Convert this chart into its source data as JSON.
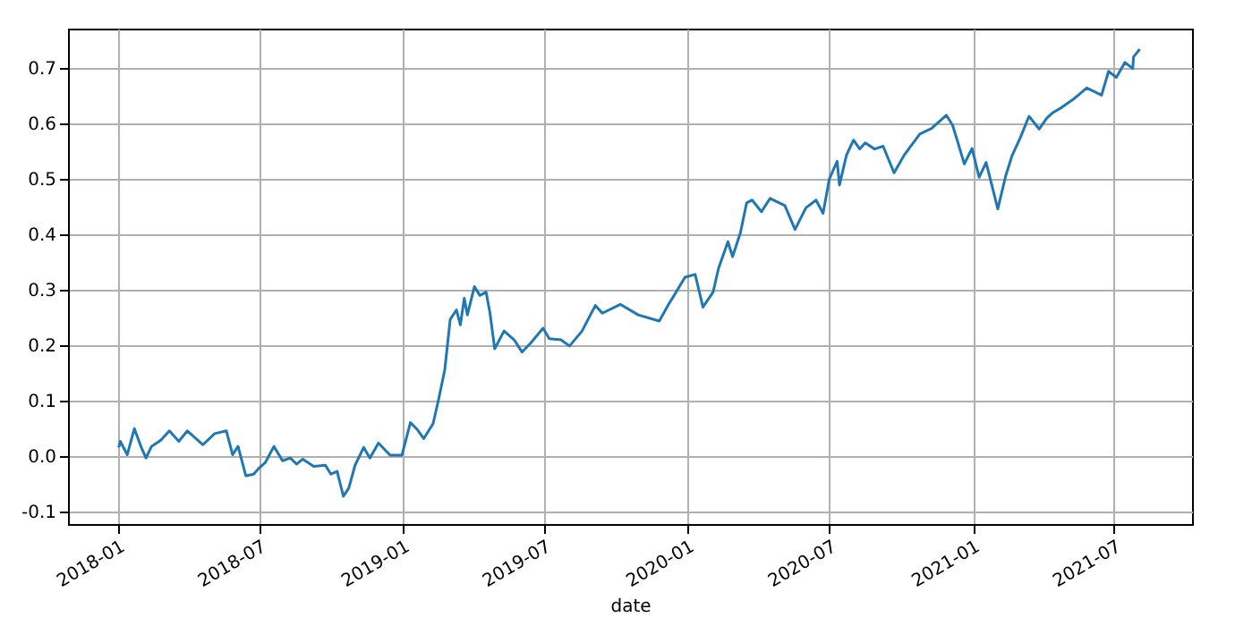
{
  "chart_data": {
    "type": "line",
    "xlabel": "date",
    "x": [
      "2018-01-02",
      "2018-01-04",
      "2018-01-13",
      "2018-01-22",
      "2018-01-31",
      "2018-02-06",
      "2018-02-13",
      "2018-02-25",
      "2018-03-08",
      "2018-03-20",
      "2018-03-31",
      "2018-04-20",
      "2018-05-05",
      "2018-05-20",
      "2018-05-28",
      "2018-06-04",
      "2018-06-14",
      "2018-06-24",
      "2018-07-01",
      "2018-07-09",
      "2018-07-20",
      "2018-07-31",
      "2018-08-10",
      "2018-08-18",
      "2018-08-26",
      "2018-09-09",
      "2018-09-24",
      "2018-10-01",
      "2018-10-09",
      "2018-10-17",
      "2018-10-24",
      "2018-11-01",
      "2018-11-12",
      "2018-11-20",
      "2018-12-01",
      "2018-12-16",
      "2018-12-31",
      "2019-01-11",
      "2019-01-20",
      "2019-01-28",
      "2019-02-09",
      "2019-02-16",
      "2019-02-24",
      "2019-03-03",
      "2019-03-11",
      "2019-03-16",
      "2019-03-21",
      "2019-03-25",
      "2019-04-03",
      "2019-04-10",
      "2019-04-18",
      "2019-04-23",
      "2019-04-29",
      "2019-05-11",
      "2019-05-24",
      "2019-06-03",
      "2019-06-14",
      "2019-06-30",
      "2019-07-08",
      "2019-07-23",
      "2019-08-03",
      "2019-08-19",
      "2019-09-05",
      "2019-09-14",
      "2019-10-07",
      "2019-10-30",
      "2019-11-26",
      "2019-12-08",
      "2019-12-15",
      "2019-12-29",
      "2020-01-11",
      "2020-01-21",
      "2020-02-03",
      "2020-02-10",
      "2020-02-22",
      "2020-02-28",
      "2020-03-09",
      "2020-03-17",
      "2020-03-24",
      "2020-04-05",
      "2020-04-16",
      "2020-05-05",
      "2020-05-18",
      "2020-06-01",
      "2020-06-14",
      "2020-06-23",
      "2020-07-01",
      "2020-07-11",
      "2020-07-14",
      "2020-07-23",
      "2020-08-01",
      "2020-08-09",
      "2020-08-16",
      "2020-08-28",
      "2020-09-08",
      "2020-09-22",
      "2020-10-05",
      "2020-10-25",
      "2020-11-09",
      "2020-11-28",
      "2020-12-06",
      "2020-12-13",
      "2020-12-21",
      "2020-12-31",
      "2021-01-09",
      "2021-01-18",
      "2021-02-02",
      "2021-02-12",
      "2021-02-20",
      "2021-03-03",
      "2021-03-14",
      "2021-03-27",
      "2021-04-06",
      "2021-04-14",
      "2021-04-25",
      "2021-05-11",
      "2021-05-27",
      "2021-06-15",
      "2021-06-24",
      "2021-07-04",
      "2021-07-15",
      "2021-07-25",
      "2021-07-26",
      "2021-08-03"
    ],
    "values": [
      0.016,
      0.027,
      0.003,
      0.05,
      0.016,
      -0.003,
      0.018,
      0.029,
      0.046,
      0.027,
      0.046,
      0.021,
      0.041,
      0.046,
      0.003,
      0.018,
      -0.035,
      -0.032,
      -0.021,
      -0.011,
      0.018,
      -0.008,
      -0.003,
      -0.014,
      -0.005,
      -0.018,
      -0.016,
      -0.032,
      -0.027,
      -0.072,
      -0.057,
      -0.016,
      0.016,
      -0.003,
      0.024,
      0.002,
      0.002,
      0.061,
      0.048,
      0.032,
      0.059,
      0.102,
      0.156,
      0.247,
      0.264,
      0.237,
      0.285,
      0.255,
      0.306,
      0.29,
      0.296,
      0.258,
      0.194,
      0.226,
      0.21,
      0.188,
      0.204,
      0.231,
      0.212,
      0.21,
      0.199,
      0.226,
      0.272,
      0.258,
      0.274,
      0.255,
      0.244,
      0.274,
      0.29,
      0.323,
      0.328,
      0.269,
      0.296,
      0.339,
      0.387,
      0.36,
      0.403,
      0.457,
      0.462,
      0.441,
      0.465,
      0.452,
      0.409,
      0.448,
      0.462,
      0.438,
      0.5,
      0.532,
      0.489,
      0.543,
      0.57,
      0.554,
      0.565,
      0.554,
      0.559,
      0.511,
      0.543,
      0.581,
      0.591,
      0.615,
      0.597,
      0.565,
      0.527,
      0.555,
      0.503,
      0.53,
      0.446,
      0.505,
      0.541,
      0.575,
      0.613,
      0.59,
      0.61,
      0.62,
      0.629,
      0.645,
      0.664,
      0.651,
      0.694,
      0.683,
      0.71,
      0.699,
      0.72,
      0.734
    ],
    "color": "#1f77b4",
    "xlim": [
      "2017-10-29",
      "2021-10-09"
    ],
    "xticks": [
      "2018-01",
      "2018-07",
      "2019-01",
      "2019-07",
      "2020-01",
      "2020-07",
      "2021-01",
      "2021-07"
    ],
    "ylim": [
      -0.122,
      0.771
    ],
    "yticks": [
      -0.1,
      {
        "value": 0,
        "label": "0.0"
      },
      0.1,
      0.2,
      0.3,
      0.4,
      0.5,
      0.6,
      0.7
    ],
    "grid": true
  }
}
